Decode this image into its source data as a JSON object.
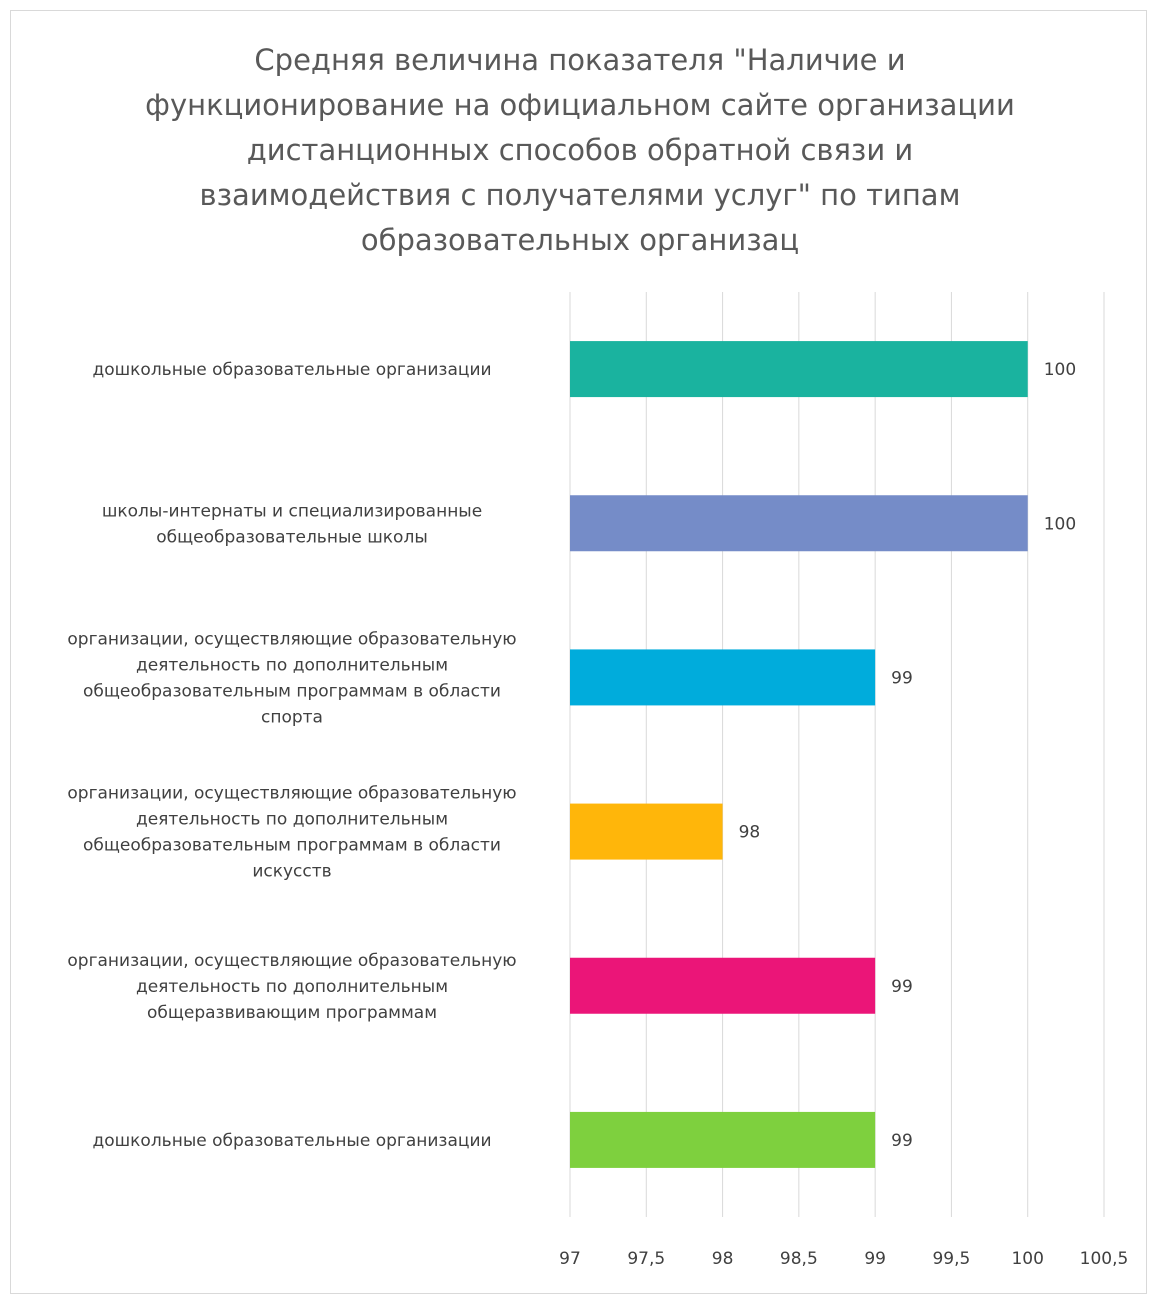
{
  "chart_data": {
    "type": "bar",
    "orientation": "horizontal",
    "title": "Средняя величина показателя \"Наличие и функционирование на официальном сайте организации дистанционных способов обратной связи и взаимодействия с получателями услуг\" по  типам образовательных организац",
    "categories": [
      "дошкольные образовательные организации",
      "школы-интернаты и специализированные общеобразовательные школы",
      "организации, осуществляющие образовательную деятельность по дополнительным общеобразовательным программам в области спорта",
      "организации, осуществляющие образовательную деятельность по дополнительным общеобразовательным программам в области искусств",
      "организации, осуществляющие образовательную деятельность по дополнительным общеразвивающим программам",
      "дошкольные образовательные организации"
    ],
    "category_lines": [
      [
        "дошкольные образовательные организации"
      ],
      [
        "школы-интернаты и специализированные",
        "общеобразовательные школы"
      ],
      [
        "организации, осуществляющие образовательную",
        "деятельность по дополнительным",
        "общеобразовательным программам в области",
        "спорта"
      ],
      [
        "организации, осуществляющие образовательную",
        "деятельность по дополнительным",
        "общеобразовательным программам в области",
        "искусств"
      ],
      [
        "организации, осуществляющие образовательную",
        "деятельность по дополнительным",
        "общеразвивающим программам"
      ],
      [
        "дошкольные образовательные организации"
      ]
    ],
    "values": [
      100,
      100,
      99,
      98,
      99,
      99
    ],
    "data_labels": [
      "100",
      "100",
      "99",
      "98",
      "99",
      "99"
    ],
    "colors": [
      "#1ab39f",
      "#758cc8",
      "#00acdc",
      "#ffb60a",
      "#eb1578",
      "#7ed03e"
    ],
    "xlim": [
      97,
      100.5
    ],
    "ticks": [
      97,
      97.5,
      98,
      98.5,
      99,
      99.5,
      100,
      100.5
    ],
    "tick_labels": [
      "97",
      "97,5",
      "98",
      "98,5",
      "99",
      "99,5",
      "100",
      "100,5"
    ],
    "grid": true,
    "gridline_color": "#d9d9d9",
    "legend": "none"
  }
}
